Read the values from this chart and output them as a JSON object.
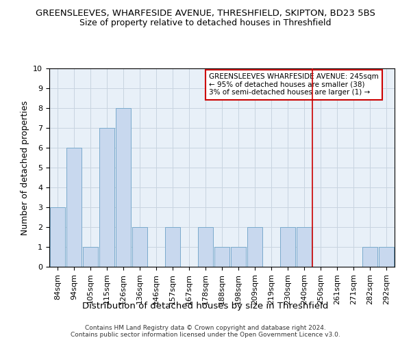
{
  "title1": "GREENSLEEVES, WHARFESIDE AVENUE, THRESHFIELD, SKIPTON, BD23 5BS",
  "title2": "Size of property relative to detached houses in Threshfield",
  "xlabel": "Distribution of detached houses by size in Threshfield",
  "ylabel": "Number of detached properties",
  "categories": [
    "84sqm",
    "94sqm",
    "105sqm",
    "115sqm",
    "126sqm",
    "136sqm",
    "146sqm",
    "157sqm",
    "167sqm",
    "178sqm",
    "188sqm",
    "198sqm",
    "209sqm",
    "219sqm",
    "230sqm",
    "240sqm",
    "250sqm",
    "261sqm",
    "271sqm",
    "282sqm",
    "292sqm"
  ],
  "values": [
    3,
    6,
    1,
    7,
    8,
    2,
    0,
    2,
    0,
    2,
    1,
    1,
    2,
    0,
    2,
    2,
    0,
    0,
    0,
    1,
    1
  ],
  "bar_color": "#c8d8ee",
  "bar_edge_color": "#7aaacc",
  "grid_color": "#c8d4e0",
  "bg_color": "#e8f0f8",
  "red_line_x": 15.5,
  "annotation_text": "GREENSLEEVES WHARFESIDE AVENUE: 245sqm\n← 95% of detached houses are smaller (38)\n3% of semi-detached houses are larger (1) →",
  "annotation_box_color": "#ffffff",
  "annotation_edge_color": "#cc0000",
  "footer1": "Contains HM Land Registry data © Crown copyright and database right 2024.",
  "footer2": "Contains public sector information licensed under the Open Government Licence v3.0.",
  "ylim": [
    0,
    10
  ],
  "title1_fontsize": 9.5,
  "title2_fontsize": 9,
  "xlabel_fontsize": 9.5,
  "ylabel_fontsize": 9,
  "tick_fontsize": 8,
  "annot_fontsize": 7.5,
  "footer_fontsize": 6.5
}
